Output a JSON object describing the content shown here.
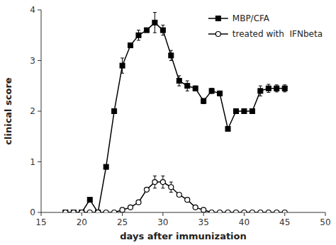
{
  "chart_data": {
    "type": "line",
    "xlabel": "days after immunization",
    "ylabel": "clinical score",
    "x": [
      18,
      19,
      20,
      21,
      22,
      23,
      24,
      25,
      26,
      27,
      28,
      29,
      30,
      31,
      32,
      33,
      34,
      35,
      36,
      37,
      38,
      39,
      40,
      41,
      42,
      43,
      44,
      45
    ],
    "series": [
      {
        "name": "MBP/CFA",
        "color": "black",
        "marker": "square",
        "values": [
          0.0,
          0.0,
          0.0,
          0.25,
          0.0,
          0.9,
          2.0,
          2.9,
          3.3,
          3.5,
          3.6,
          3.75,
          3.6,
          3.1,
          2.6,
          2.5,
          2.45,
          2.2,
          2.4,
          2.35,
          1.65,
          2.0,
          2.0,
          2.0,
          2.4,
          2.45,
          2.45,
          2.45
        ],
        "errors": [
          0.0,
          0.0,
          0.0,
          0.0,
          0.0,
          0.0,
          0.0,
          0.15,
          0.0,
          0.1,
          0.0,
          0.2,
          0.1,
          0.1,
          0.1,
          0.1,
          0.05,
          0.05,
          0.05,
          0.05,
          0.0,
          0.0,
          0.0,
          0.0,
          0.1,
          0.08,
          0.07,
          0.07
        ]
      },
      {
        "name": "treated with  IFNbeta",
        "color": "black",
        "marker": "circle",
        "values": [
          0.0,
          0.0,
          0.0,
          0.0,
          0.0,
          0.0,
          0.0,
          0.05,
          0.1,
          0.2,
          0.45,
          0.6,
          0.6,
          0.5,
          0.35,
          0.25,
          0.1,
          0.05,
          0.0,
          0.0,
          0.0,
          0.0,
          0.0,
          0.0,
          0.0,
          0.0,
          0.0,
          0.0
        ],
        "errors": [
          0.0,
          0.0,
          0.0,
          0.0,
          0.0,
          0.0,
          0.0,
          0.0,
          0.0,
          0.0,
          0.0,
          0.12,
          0.12,
          0.1,
          0.0,
          0.0,
          0.0,
          0.0,
          0.0,
          0.0,
          0.0,
          0.0,
          0.0,
          0.0,
          0.0,
          0.0,
          0.0,
          0.0
        ]
      }
    ],
    "xlim": [
      15,
      50
    ],
    "ylim": [
      0,
      4
    ],
    "xticks": [
      15,
      20,
      25,
      30,
      35,
      40,
      45,
      50
    ],
    "yticks": [
      0,
      1,
      2,
      3,
      4
    ],
    "grid": false,
    "legend": "upper right"
  }
}
